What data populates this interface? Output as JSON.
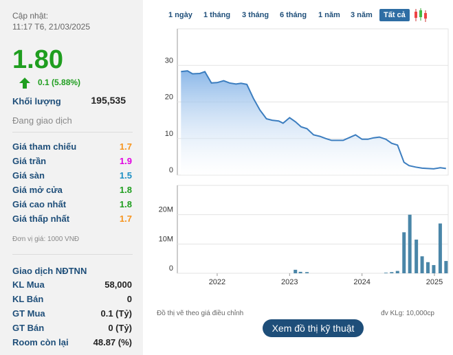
{
  "header": {
    "update_label": "Cập nhật:",
    "update_time": "11:17 T6, 21/03/2025"
  },
  "price": {
    "value": "1.80",
    "change": "0.1 (5.88%)",
    "color": "#1f9e1f"
  },
  "volume": {
    "label": "Khối lượng",
    "value": "195,535"
  },
  "status": "Đang giao dịch",
  "prices": [
    {
      "label": "Giá tham chiếu",
      "value": "1.7",
      "color": "#f7941d"
    },
    {
      "label": "Giá trần",
      "value": "1.9",
      "color": "#e000e0"
    },
    {
      "label": "Giá sàn",
      "value": "1.5",
      "color": "#1c8fc4"
    },
    {
      "label": "Giá mở cửa",
      "value": "1.8",
      "color": "#1f9e1f"
    },
    {
      "label": "Giá cao nhất",
      "value": "1.8",
      "color": "#1f9e1f"
    },
    {
      "label": "Giá thấp nhất",
      "value": "1.7",
      "color": "#f7941d"
    }
  ],
  "unit_note": "Đơn vị giá: 1000 VNĐ",
  "foreign": {
    "title": "Giao dịch NĐTNN",
    "rows": [
      {
        "label": "KL Mua",
        "value": "58,000"
      },
      {
        "label": "KL Bán",
        "value": "0"
      },
      {
        "label": "GT Mua",
        "value": "0.1 (Tỷ)"
      },
      {
        "label": "GT Bán",
        "value": "0 (Tỷ)"
      },
      {
        "label": "Room còn lại",
        "value": "48.87 (%)"
      }
    ]
  },
  "tabs": [
    "1 ngày",
    "1 tháng",
    "3 tháng",
    "6 tháng",
    "1 năm",
    "3 năm",
    "Tất cả"
  ],
  "active_tab": 6,
  "chart_data": [
    {
      "type": "line",
      "color": "#3b7dbf",
      "x": [
        2021.5,
        2021.59,
        2021.66,
        2021.76,
        2021.83,
        2021.92,
        2022.0,
        2022.09,
        2022.17,
        2022.26,
        2022.33,
        2022.41,
        2022.5,
        2022.59,
        2022.68,
        2022.76,
        2022.85,
        2022.91,
        2023.0,
        2023.08,
        2023.16,
        2023.24,
        2023.33,
        2023.42,
        2023.5,
        2023.58,
        2023.66,
        2023.74,
        2023.83,
        2023.91,
        2024.0,
        2024.08,
        2024.16,
        2024.24,
        2024.33,
        2024.41,
        2024.49,
        2024.58,
        2024.65,
        2024.74,
        2024.83,
        2024.91,
        2024.99,
        2025.08,
        2025.16
      ],
      "values": [
        28.3,
        28.5,
        27.7,
        27.8,
        28.3,
        25.2,
        25.3,
        25.8,
        25.2,
        24.9,
        25.1,
        24.8,
        21,
        17.8,
        15.4,
        15.0,
        14.8,
        14.2,
        15.7,
        14.6,
        13.2,
        12.7,
        11,
        10.6,
        10,
        9.5,
        9.5,
        9.5,
        10.3,
        11,
        9.8,
        9.8,
        10.2,
        10.4,
        9.8,
        8.7,
        8.2,
        3.5,
        2.6,
        2.2,
        1.9,
        1.8,
        1.7,
        2.0,
        1.8
      ],
      "xlim": [
        2021.45,
        2025.19
      ],
      "ylim": [
        0,
        40
      ],
      "yticks": [
        0,
        10,
        20,
        30
      ],
      "grid": true
    },
    {
      "type": "bar",
      "color": "#4a86a8",
      "x": [
        2023.08,
        2023.15,
        2023.24,
        2024.33,
        2024.41,
        2024.49,
        2024.58,
        2024.66,
        2024.75,
        2024.83,
        2024.91,
        2024.99,
        2025.08,
        2025.16
      ],
      "values": [
        1200000,
        500000,
        400000,
        200000,
        400000,
        800000,
        14000000,
        20000000,
        11500000,
        5800000,
        3800000,
        2800000,
        17000000,
        4200000
      ],
      "xlim": [
        2021.45,
        2025.19
      ],
      "ylim": [
        0,
        30000000
      ],
      "yticks": [
        0,
        {
          "value": 10000000,
          "label": "10M"
        },
        {
          "value": 20000000,
          "label": "20M"
        }
      ],
      "xticks": [
        2022,
        2023,
        2024,
        2025
      ],
      "grid": true
    }
  ],
  "footnotes": {
    "left": "Đồ thị vẽ theo giá điều chỉnh",
    "right": "đv KLg: 10,000cp"
  },
  "button": "Xem đồ thị kỹ thuật"
}
